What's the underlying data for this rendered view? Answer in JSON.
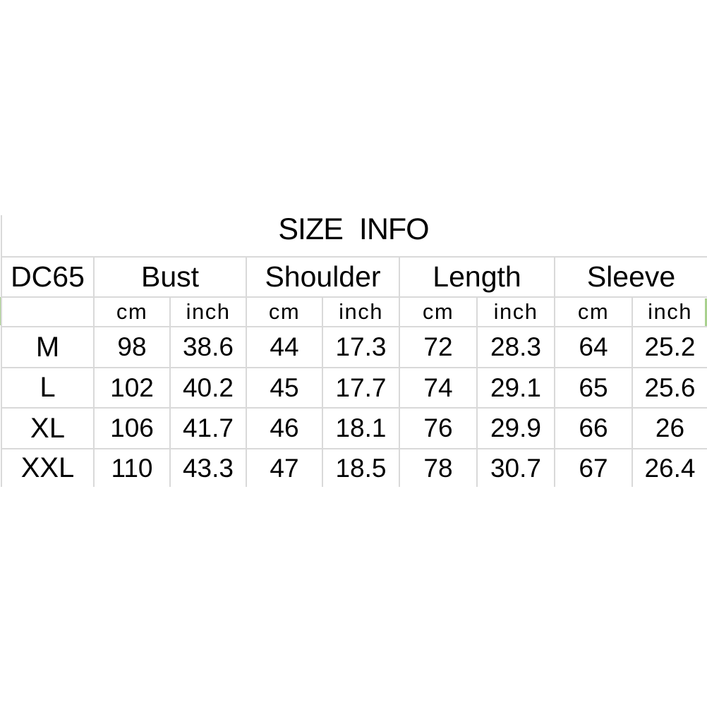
{
  "page": {
    "background": "#ffffff"
  },
  "title": "SIZE INFO",
  "colors": {
    "gridline": "#d9d9d9",
    "text": "#000000",
    "selection_green": "#a9d18e"
  },
  "table": {
    "model_code": "DC65",
    "measure_headers": [
      "Bust",
      "Shoulder",
      "Length",
      "Sleeve"
    ],
    "unit_headers": [
      "cm",
      "inch",
      "cm",
      "inch",
      "cm",
      "inch",
      "cm",
      "inch"
    ],
    "rows": [
      {
        "size": "M",
        "values": [
          "98",
          "38.6",
          "44",
          "17.3",
          "72",
          "28.3",
          "64",
          "25.2"
        ]
      },
      {
        "size": "L",
        "values": [
          "102",
          "40.2",
          "45",
          "17.7",
          "74",
          "29.1",
          "65",
          "25.6"
        ]
      },
      {
        "size": "XL",
        "values": [
          "106",
          "41.7",
          "46",
          "18.1",
          "76",
          "29.9",
          "66",
          "26"
        ]
      },
      {
        "size": "XXL",
        "values": [
          "110",
          "43.3",
          "47",
          "18.5",
          "78",
          "30.7",
          "67",
          "26.4"
        ]
      }
    ]
  },
  "chart_data": {
    "type": "table",
    "title": "SIZE INFO",
    "columns": [
      "DC65",
      "Bust cm",
      "Bust inch",
      "Shoulder cm",
      "Shoulder inch",
      "Length cm",
      "Length inch",
      "Sleeve cm",
      "Sleeve inch"
    ],
    "rows": [
      [
        "M",
        98,
        38.6,
        44,
        17.3,
        72,
        28.3,
        64,
        25.2
      ],
      [
        "L",
        102,
        40.2,
        45,
        17.7,
        74,
        29.1,
        65,
        25.6
      ],
      [
        "XL",
        106,
        41.7,
        46,
        18.1,
        76,
        29.9,
        66,
        26
      ],
      [
        "XXL",
        110,
        43.3,
        47,
        18.5,
        78,
        30.7,
        67,
        26.4
      ]
    ],
    "layout": {
      "gridlines": true,
      "header_merged_units": [
        "cm",
        "inch"
      ]
    }
  }
}
